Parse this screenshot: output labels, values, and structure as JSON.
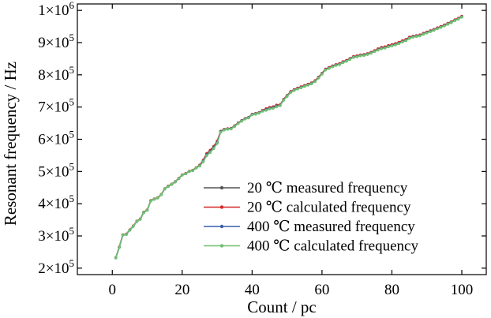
{
  "chart_data": {
    "type": "line",
    "xlabel": "Count / pc",
    "ylabel": "Resonant frequency / Hz",
    "xlim": [
      -10,
      107
    ],
    "ylim": [
      180000,
      1020000
    ],
    "x_ticks": [
      0,
      20,
      40,
      60,
      80,
      100
    ],
    "x_tick_labels": [
      "0",
      "20",
      "40",
      "60",
      "80",
      "100"
    ],
    "y_ticks": [
      200000,
      300000,
      400000,
      500000,
      600000,
      700000,
      800000,
      900000,
      1000000
    ],
    "y_tick_labels": [
      {
        "mantissa": "2",
        "exponent": "5"
      },
      {
        "mantissa": "3",
        "exponent": "5"
      },
      {
        "mantissa": "4",
        "exponent": "5"
      },
      {
        "mantissa": "5",
        "exponent": "5"
      },
      {
        "mantissa": "6",
        "exponent": "5"
      },
      {
        "mantissa": "7",
        "exponent": "5"
      },
      {
        "mantissa": "8",
        "exponent": "5"
      },
      {
        "mantissa": "9",
        "exponent": "5"
      },
      {
        "mantissa": "1",
        "exponent": "6"
      }
    ],
    "grid": false,
    "legend_position": "bottom-right",
    "x": [
      1,
      2,
      3,
      4,
      5,
      6,
      7,
      8,
      9,
      10,
      11,
      12,
      13,
      14,
      15,
      16,
      17,
      18,
      19,
      20,
      21,
      22,
      23,
      24,
      25,
      26,
      27,
      28,
      29,
      30,
      31,
      32,
      33,
      34,
      35,
      36,
      37,
      38,
      39,
      40,
      41,
      42,
      43,
      44,
      45,
      46,
      47,
      48,
      49,
      50,
      51,
      52,
      53,
      54,
      55,
      56,
      57,
      58,
      59,
      60,
      61,
      62,
      63,
      64,
      65,
      66,
      67,
      68,
      69,
      70,
      71,
      72,
      73,
      74,
      75,
      76,
      77,
      78,
      79,
      80,
      81,
      82,
      83,
      84,
      85,
      86,
      87,
      88,
      89,
      90,
      91,
      92,
      93,
      94,
      95,
      96,
      97,
      98,
      99,
      100
    ],
    "series": [
      {
        "name": "20 ℃ measured frequency",
        "color": "#555555",
        "values": [
          232000,
          265000,
          303000,
          305000,
          318000,
          330000,
          345000,
          352000,
          373000,
          380000,
          409000,
          414000,
          418000,
          428000,
          446000,
          454000,
          460000,
          468000,
          478000,
          489000,
          493000,
          500000,
          503000,
          511000,
          518000,
          532000,
          552000,
          562000,
          574000,
          590000,
          623000,
          630000,
          632000,
          633000,
          641000,
          650000,
          657000,
          664000,
          667000,
          677000,
          679000,
          682000,
          688000,
          692000,
          696000,
          698000,
          703000,
          705000,
          722000,
          734000,
          746000,
          752000,
          757000,
          761000,
          765000,
          769000,
          773000,
          780000,
          791000,
          803000,
          816000,
          821000,
          826000,
          830000,
          833000,
          839000,
          843000,
          849000,
          855000,
          857000,
          860000,
          861000,
          864000,
          868000,
          873000,
          878000,
          882000,
          884000,
          888000,
          891000,
          894000,
          898000,
          903000,
          907000,
          914000,
          918000,
          920000,
          922000,
          927000,
          931000,
          935000,
          939000,
          944000,
          948000,
          953000,
          958000,
          963000,
          969000,
          974000,
          980000
        ]
      },
      {
        "name": "20 ℃ calculated frequency",
        "color": "#d62728",
        "values": [
          233000,
          266000,
          304000,
          306000,
          319000,
          331000,
          346000,
          353000,
          374000,
          381000,
          410000,
          415000,
          419000,
          429000,
          447000,
          455000,
          461000,
          469000,
          479000,
          490000,
          494000,
          501000,
          504000,
          512000,
          520000,
          535000,
          556000,
          566000,
          578000,
          594000,
          625000,
          631000,
          633000,
          634000,
          642000,
          651000,
          658000,
          665000,
          668000,
          678000,
          680000,
          683000,
          690000,
          695000,
          699000,
          701000,
          706000,
          707000,
          724000,
          736000,
          748000,
          754000,
          759000,
          763000,
          767000,
          771000,
          775000,
          782000,
          793000,
          805000,
          818000,
          823000,
          828000,
          832000,
          835000,
          841000,
          845000,
          851000,
          857000,
          859000,
          862000,
          863000,
          866000,
          870000,
          875000,
          881000,
          885000,
          887000,
          891000,
          894000,
          897000,
          901000,
          906000,
          910000,
          917000,
          920000,
          922000,
          924000,
          929000,
          933000,
          937000,
          941000,
          946000,
          950000,
          955000,
          960000,
          965000,
          971000,
          976000,
          982000
        ]
      },
      {
        "name": "400 ℃ measured frequency",
        "color": "#3a5fa8",
        "values": [
          232000,
          265000,
          303000,
          305000,
          318000,
          330000,
          345000,
          352000,
          373000,
          380000,
          409000,
          414000,
          418000,
          428000,
          446000,
          454000,
          460000,
          468000,
          478000,
          489000,
          493000,
          500000,
          503000,
          511000,
          518000,
          532000,
          552000,
          562000,
          574000,
          590000,
          623000,
          630000,
          632000,
          633000,
          641000,
          650000,
          657000,
          664000,
          667000,
          677000,
          679000,
          682000,
          688000,
          692000,
          696000,
          698000,
          703000,
          705000,
          722000,
          734000,
          746000,
          752000,
          757000,
          761000,
          765000,
          769000,
          773000,
          780000,
          791000,
          803000,
          816000,
          821000,
          826000,
          830000,
          833000,
          839000,
          843000,
          849000,
          855000,
          857000,
          860000,
          861000,
          864000,
          868000,
          873000,
          878000,
          882000,
          884000,
          888000,
          891000,
          894000,
          898000,
          903000,
          907000,
          914000,
          918000,
          920000,
          922000,
          927000,
          931000,
          935000,
          939000,
          944000,
          948000,
          953000,
          958000,
          963000,
          969000,
          974000,
          980000
        ]
      },
      {
        "name": "400 ℃ calculated frequency",
        "color": "#6fbf6f",
        "values": [
          232000,
          265000,
          303000,
          305000,
          318000,
          330000,
          345000,
          352000,
          373000,
          380000,
          409000,
          414000,
          418000,
          428000,
          446000,
          454000,
          460000,
          468000,
          478000,
          489000,
          493000,
          500000,
          503000,
          511000,
          517000,
          530000,
          549000,
          559000,
          571000,
          587000,
          622000,
          629000,
          631000,
          632000,
          640000,
          649000,
          656000,
          663000,
          666000,
          676000,
          678000,
          681000,
          687000,
          690000,
          694000,
          696000,
          701000,
          704000,
          721000,
          733000,
          745000,
          751000,
          756000,
          760000,
          764000,
          768000,
          772000,
          779000,
          790000,
          802000,
          815000,
          820000,
          825000,
          829000,
          832000,
          838000,
          842000,
          848000,
          854000,
          856000,
          859000,
          860000,
          863000,
          867000,
          872000,
          877000,
          881000,
          883000,
          887000,
          890000,
          893000,
          897000,
          902000,
          906000,
          913000,
          917000,
          919000,
          921000,
          926000,
          930000,
          934000,
          938000,
          943000,
          947000,
          952000,
          957000,
          962000,
          968000,
          973000,
          979000
        ]
      }
    ]
  }
}
